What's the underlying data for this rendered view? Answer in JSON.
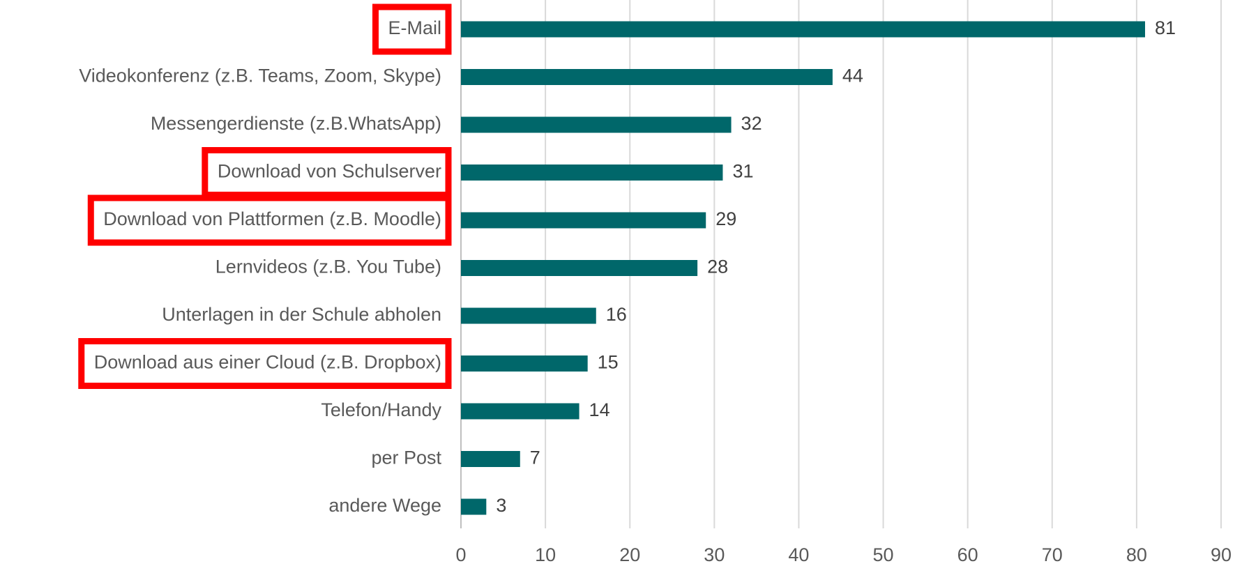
{
  "chart_data": {
    "type": "bar",
    "orientation": "horizontal",
    "categories": [
      "E-Mail",
      "Videokonferenz (z.B. Teams, Zoom, Skype)",
      "Messengerdienste (z.B.WhatsApp)",
      "Download von Schulserver",
      "Download von Plattformen (z.B. Moodle)",
      "Lernvideos (z.B. You Tube)",
      "Unterlagen in der Schule abholen",
      "Download aus einer Cloud (z.B. Dropbox)",
      "Telefon/Handy",
      "per Post",
      "andere Wege"
    ],
    "values": [
      81,
      44,
      32,
      31,
      29,
      28,
      16,
      15,
      14,
      7,
      3
    ],
    "color": "#00676a",
    "xlim": [
      0,
      90
    ],
    "xticks": [
      0,
      10,
      20,
      30,
      40,
      50,
      60,
      70,
      80,
      90
    ],
    "grid": true,
    "highlighted_categories": [
      0,
      3,
      4,
      7
    ],
    "highlight_color": "#ff0000"
  }
}
